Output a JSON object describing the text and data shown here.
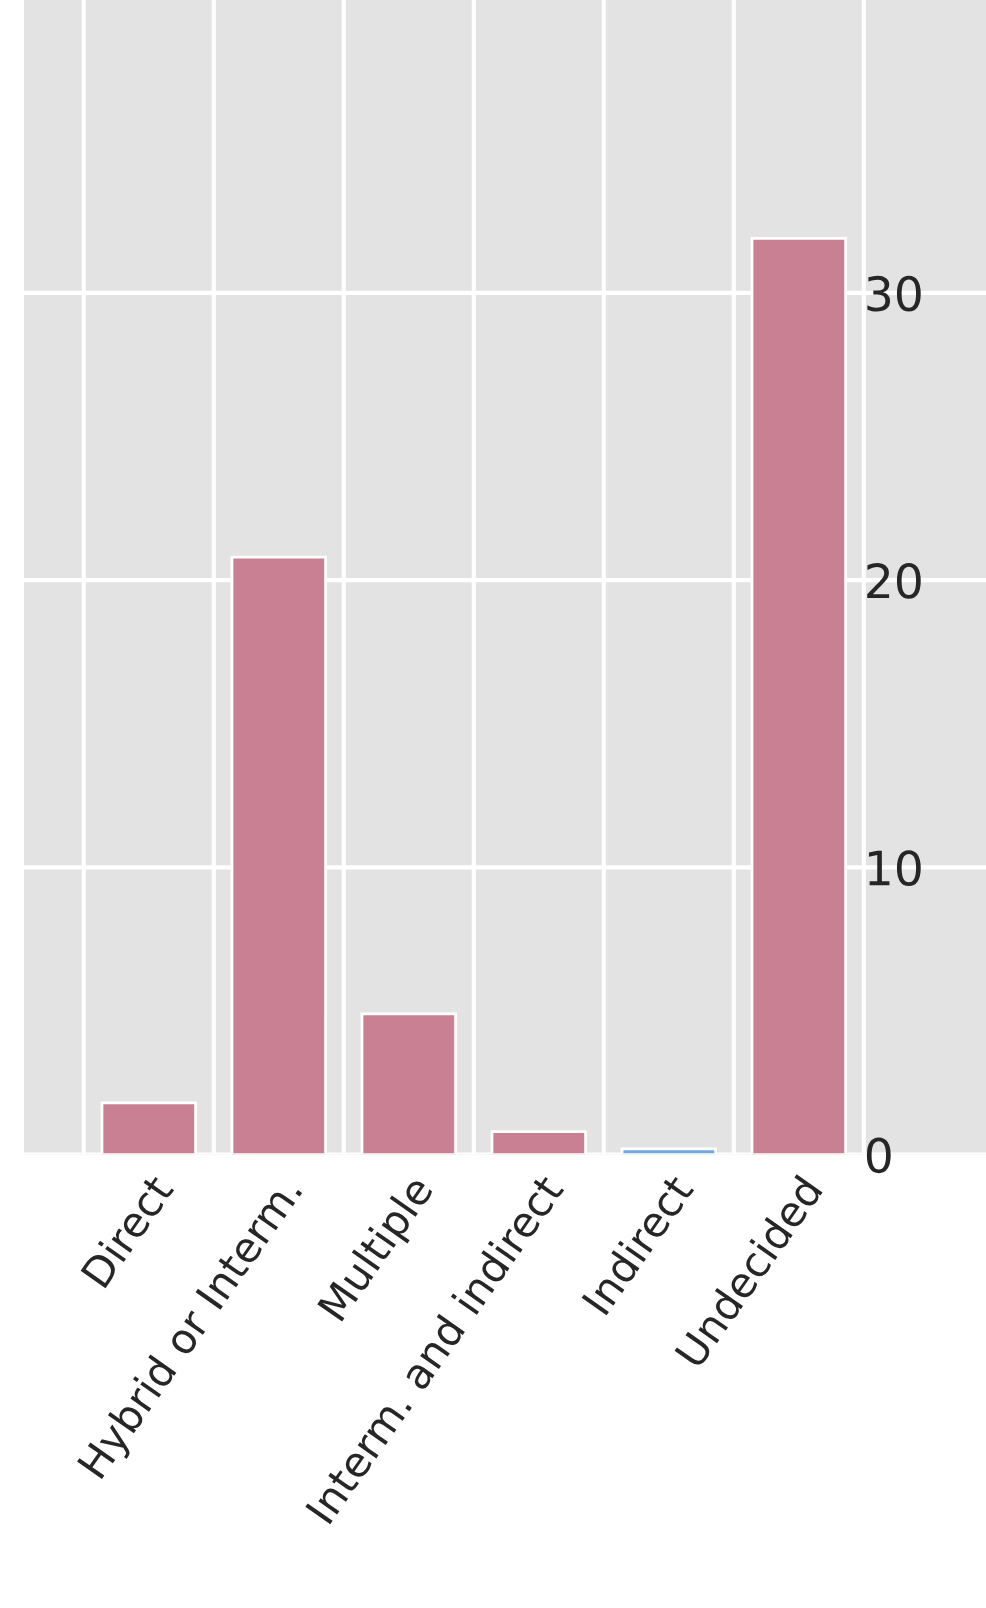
{
  "chart_data": {
    "type": "bar",
    "categories": [
      "Direct",
      "Hybrid or Interm.",
      "Multiple",
      "Interm. and indirect",
      "Indirect",
      "Undecided"
    ],
    "values": [
      1.8,
      20.8,
      4.9,
      0.8,
      0.2,
      31.9
    ],
    "colors": [
      "#c98092",
      "#c98092",
      "#c98092",
      "#c98092",
      "#6fa8dc",
      "#c98092"
    ],
    "ylim": [
      0,
      40.2
    ],
    "yticks": [
      0,
      10,
      20,
      30
    ],
    "grid": true
  }
}
